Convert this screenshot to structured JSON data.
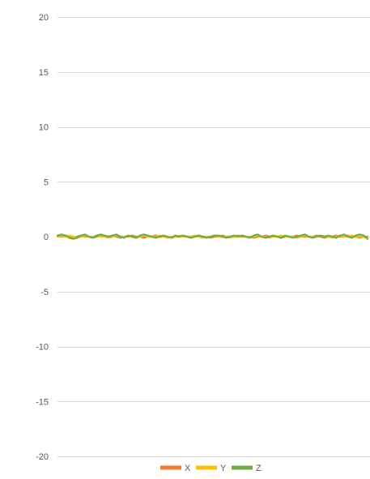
{
  "chart_data": {
    "type": "line",
    "title": "",
    "xlabel": "",
    "ylabel": "",
    "ylim": [
      -20,
      20
    ],
    "yticks": [
      20,
      15,
      10,
      5,
      0,
      -5,
      -10,
      -15,
      -20
    ],
    "ytick_labels": [
      "20",
      "15",
      "10",
      "5",
      "0",
      "-5",
      "-10",
      "-15",
      "-20"
    ],
    "grid": true,
    "legend_position": "bottom",
    "series": [
      {
        "name": "X",
        "color": "#ED7D31",
        "values": [
          0.1,
          0.0,
          0.1,
          0.0,
          -0.1,
          0.0,
          0.1,
          0.0,
          0.0,
          -0.1,
          0.0,
          0.1,
          0.0,
          0.0,
          0.1,
          0.0,
          -0.1,
          0.0,
          0.0,
          0.1,
          0.0,
          0.0,
          -0.1,
          0.0,
          0.0,
          0.1,
          0.0,
          0.0,
          0.0,
          -0.1,
          0.0,
          0.0,
          0.1,
          0.0,
          0.0,
          0.0,
          0.1,
          0.0,
          0.0,
          -0.1,
          0.0,
          0.0,
          0.1,
          0.0,
          0.0,
          0.0,
          0.1,
          0.0,
          0.0,
          0.0,
          -0.1,
          0.0,
          0.0,
          0.1,
          0.0,
          0.0,
          0.0,
          -0.1,
          0.0,
          0.0,
          0.0,
          0.1,
          0.0,
          0.0,
          0.0,
          0.0,
          0.1,
          0.0,
          -0.1,
          0.0,
          0.0,
          0.1,
          0.0,
          0.0,
          0.1,
          0.0,
          0.0,
          -0.1,
          0.0,
          0.0
        ]
      },
      {
        "name": "Y",
        "color": "#FFC000",
        "values": [
          0.0,
          0.1,
          0.0,
          0.1,
          0.0,
          -0.1,
          0.0,
          0.1,
          0.0,
          0.0,
          0.1,
          0.0,
          0.0,
          -0.1,
          0.0,
          0.1,
          0.0,
          0.0,
          0.1,
          0.0,
          -0.1,
          0.0,
          0.1,
          0.0,
          0.0,
          0.0,
          0.1,
          0.0,
          -0.1,
          0.0,
          0.0,
          0.1,
          0.0,
          0.0,
          0.0,
          0.1,
          0.0,
          -0.1,
          0.0,
          0.0,
          0.1,
          0.0,
          0.0,
          0.0,
          -0.1,
          0.0,
          0.0,
          0.1,
          0.0,
          0.0,
          0.0,
          0.1,
          0.0,
          0.0,
          -0.1,
          0.0,
          0.0,
          0.1,
          0.0,
          0.0,
          0.0,
          -0.1,
          0.0,
          0.1,
          0.0,
          0.0,
          0.0,
          0.1,
          0.0,
          0.0,
          -0.1,
          0.0,
          0.1,
          0.0,
          0.0,
          0.1,
          0.0,
          0.0,
          0.0,
          -0.1
        ]
      },
      {
        "name": "Z",
        "color": "#70AD47",
        "values": [
          0.1,
          0.2,
          0.1,
          -0.1,
          -0.2,
          -0.1,
          0.1,
          0.2,
          0.0,
          -0.1,
          0.1,
          0.2,
          0.1,
          0.0,
          0.1,
          0.2,
          0.0,
          -0.1,
          0.1,
          0.0,
          -0.1,
          0.1,
          0.2,
          0.1,
          0.0,
          -0.1,
          0.0,
          0.1,
          0.0,
          -0.1,
          0.1,
          0.0,
          0.1,
          0.0,
          -0.1,
          0.0,
          0.1,
          0.0,
          -0.1,
          0.0,
          0.1,
          0.1,
          0.0,
          -0.1,
          0.0,
          0.1,
          0.0,
          0.1,
          0.0,
          -0.1,
          0.1,
          0.2,
          0.0,
          -0.1,
          0.0,
          0.1,
          0.0,
          -0.1,
          0.1,
          0.0,
          -0.1,
          0.0,
          0.1,
          0.2,
          0.0,
          -0.1,
          0.0,
          0.1,
          0.0,
          0.1,
          0.0,
          -0.1,
          0.1,
          0.2,
          0.0,
          -0.1,
          0.1,
          0.2,
          0.1,
          -0.2
        ]
      }
    ]
  }
}
